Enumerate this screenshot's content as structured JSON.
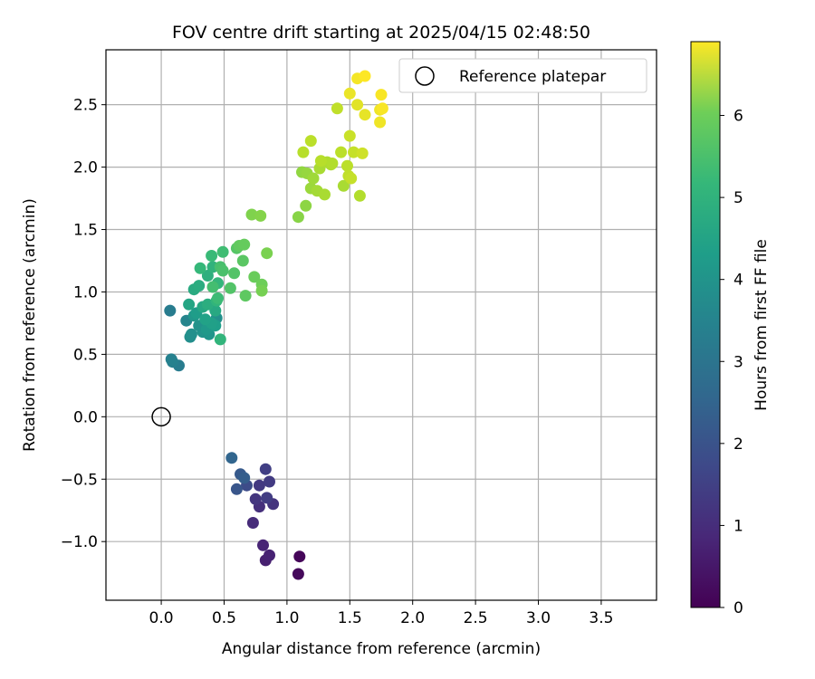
{
  "chart_data": {
    "type": "scatter",
    "title": "FOV centre drift starting at 2025/04/15 02:48:50",
    "xlabel": "Angular distance from reference (arcmin)",
    "ylabel": "Rotation from reference (arcmin)",
    "xlim": [
      -0.44,
      3.94
    ],
    "ylim": [
      -1.47,
      2.94
    ],
    "xticks": [
      0.0,
      0.5,
      1.0,
      1.5,
      2.0,
      2.5,
      3.0,
      3.5
    ],
    "xtick_labels": [
      "0.0",
      "0.5",
      "1.0",
      "1.5",
      "2.0",
      "2.5",
      "3.0",
      "3.5"
    ],
    "yticks": [
      -1.0,
      -0.5,
      0.0,
      0.5,
      1.0,
      1.5,
      2.0,
      2.5
    ],
    "ytick_labels": [
      "−1.0",
      "−0.5",
      "0.0",
      "0.5",
      "1.0",
      "1.5",
      "2.0",
      "2.5"
    ],
    "grid": true,
    "legend": {
      "position": "top-right",
      "entries": [
        "Reference platepar"
      ]
    },
    "reference_point": {
      "x": 0.0,
      "y": 0.0,
      "label": "Reference platepar"
    },
    "colorbar": {
      "label": "Hours from first FF file",
      "min": 0,
      "max": 6.9,
      "colormap": "viridis",
      "ticks": [
        0,
        1,
        2,
        3,
        4,
        5,
        6
      ],
      "tick_labels": [
        "0",
        "1",
        "2",
        "3",
        "4",
        "5",
        "6"
      ]
    },
    "series": [
      {
        "values_format": "[x_arcmin, y_arcmin, hours]",
        "points": [
          [
            1.1,
            -1.12,
            0.1
          ],
          [
            1.09,
            -1.26,
            0.15
          ],
          [
            0.83,
            -1.15,
            0.6
          ],
          [
            0.86,
            -1.11,
            0.65
          ],
          [
            0.81,
            -1.03,
            0.7
          ],
          [
            0.73,
            -0.85,
            0.85
          ],
          [
            0.78,
            -0.72,
            0.95
          ],
          [
            0.89,
            -0.7,
            1.05
          ],
          [
            0.75,
            -0.66,
            1.1
          ],
          [
            0.84,
            -0.65,
            1.25
          ],
          [
            0.78,
            -0.55,
            1.15
          ],
          [
            0.86,
            -0.52,
            1.2
          ],
          [
            0.83,
            -0.42,
            1.3
          ],
          [
            0.68,
            -0.55,
            1.6
          ],
          [
            0.6,
            -0.58,
            1.85
          ],
          [
            0.63,
            -0.46,
            1.95
          ],
          [
            0.66,
            -0.49,
            2.05
          ],
          [
            0.56,
            -0.33,
            2.25
          ],
          [
            0.14,
            0.41,
            2.9
          ],
          [
            0.09,
            0.44,
            3.0
          ],
          [
            0.08,
            0.46,
            3.05
          ],
          [
            0.07,
            0.85,
            2.9
          ],
          [
            0.2,
            0.77,
            3.15
          ],
          [
            0.23,
            0.64,
            3.4
          ],
          [
            0.24,
            0.66,
            3.45
          ],
          [
            0.33,
            0.68,
            3.55
          ],
          [
            0.38,
            0.66,
            3.6
          ],
          [
            0.3,
            0.73,
            3.5
          ],
          [
            0.44,
            0.79,
            3.45
          ],
          [
            0.26,
            0.81,
            3.65
          ],
          [
            0.36,
            0.7,
            3.7
          ],
          [
            0.28,
            0.83,
            3.8
          ],
          [
            0.43,
            0.73,
            3.85
          ],
          [
            0.4,
            0.75,
            3.9
          ],
          [
            0.35,
            0.78,
            3.95
          ],
          [
            0.22,
            0.9,
            4.05
          ],
          [
            0.33,
            0.88,
            4.1
          ],
          [
            0.43,
            0.85,
            4.15
          ],
          [
            0.26,
            1.02,
            4.2
          ],
          [
            0.3,
            1.05,
            4.25
          ],
          [
            0.37,
            0.9,
            4.3
          ],
          [
            0.37,
            1.13,
            4.35
          ],
          [
            0.41,
            1.2,
            4.45
          ],
          [
            0.44,
            0.93,
            4.5
          ],
          [
            0.47,
            0.62,
            4.5
          ],
          [
            0.45,
            1.07,
            4.55
          ],
          [
            0.31,
            1.19,
            4.6
          ],
          [
            0.4,
            1.29,
            4.65
          ],
          [
            0.45,
            0.95,
            4.7
          ],
          [
            0.49,
            1.32,
            4.75
          ],
          [
            0.41,
            1.04,
            4.8
          ],
          [
            0.47,
            1.2,
            4.85
          ],
          [
            0.49,
            1.17,
            4.9
          ],
          [
            0.55,
            1.03,
            5.0
          ],
          [
            0.58,
            1.15,
            5.0
          ],
          [
            0.6,
            1.35,
            5.05
          ],
          [
            0.65,
            1.25,
            5.1
          ],
          [
            0.67,
            0.97,
            5.15
          ],
          [
            0.62,
            1.37,
            5.2
          ],
          [
            0.66,
            1.38,
            5.25
          ],
          [
            0.74,
            1.12,
            5.3
          ],
          [
            0.8,
            1.06,
            5.35
          ],
          [
            0.8,
            1.01,
            5.45
          ],
          [
            0.84,
            1.31,
            5.5
          ],
          [
            0.72,
            1.62,
            5.55
          ],
          [
            0.79,
            1.61,
            5.6
          ],
          [
            1.09,
            1.6,
            5.65
          ],
          [
            1.15,
            1.69,
            5.7
          ],
          [
            1.12,
            1.96,
            5.75
          ],
          [
            1.16,
            1.95,
            5.8
          ],
          [
            1.19,
            1.83,
            5.85
          ],
          [
            1.21,
            1.91,
            5.9
          ],
          [
            1.24,
            1.81,
            5.95
          ],
          [
            1.3,
            1.78,
            6.0
          ],
          [
            1.26,
            1.99,
            6.0
          ],
          [
            1.32,
            2.04,
            6.05
          ],
          [
            1.35,
            2.02,
            6.05
          ],
          [
            1.27,
            2.05,
            6.15
          ],
          [
            1.36,
            2.03,
            6.1
          ],
          [
            1.45,
            1.85,
            6.0
          ],
          [
            1.48,
            2.01,
            6.2
          ],
          [
            1.49,
            1.93,
            6.25
          ],
          [
            1.51,
            1.91,
            6.3
          ],
          [
            1.43,
            2.12,
            6.2
          ],
          [
            1.53,
            2.12,
            6.3
          ],
          [
            1.58,
            1.77,
            6.1
          ],
          [
            1.5,
            2.25,
            6.35
          ],
          [
            1.6,
            2.11,
            6.4
          ],
          [
            1.13,
            2.12,
            6.15
          ],
          [
            1.19,
            2.21,
            6.2
          ],
          [
            1.4,
            2.47,
            6.25
          ],
          [
            1.56,
            2.5,
            6.6
          ],
          [
            1.5,
            2.59,
            6.7
          ],
          [
            1.62,
            2.42,
            6.65
          ],
          [
            1.74,
            2.36,
            6.75
          ],
          [
            1.74,
            2.46,
            6.75
          ],
          [
            1.75,
            2.58,
            6.85
          ],
          [
            1.76,
            2.47,
            6.85
          ],
          [
            1.56,
            2.71,
            6.8
          ],
          [
            1.62,
            2.73,
            6.9
          ]
        ]
      }
    ]
  }
}
